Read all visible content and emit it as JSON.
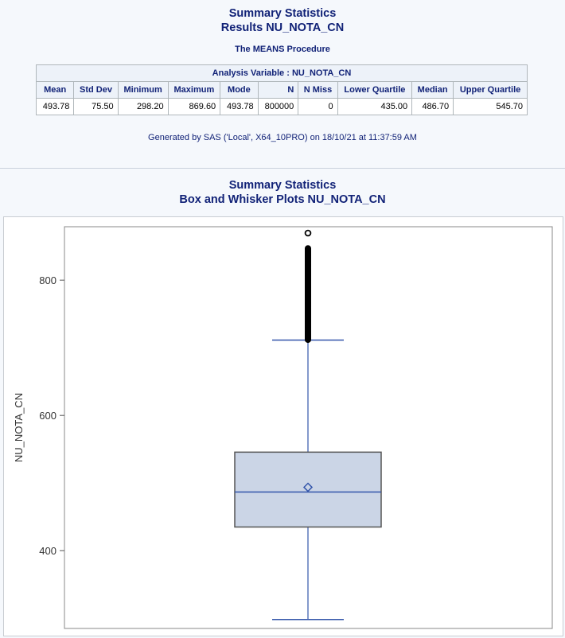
{
  "header": {
    "title": "Summary Statistics",
    "subtitle": "Results NU_NOTA_CN",
    "procedure": "The MEANS Procedure"
  },
  "table": {
    "caption": "Analysis Variable : NU_NOTA_CN",
    "columns": [
      "Mean",
      "Std Dev",
      "Minimum",
      "Maximum",
      "Mode",
      "N",
      "N Miss",
      "Lower Quartile",
      "Median",
      "Upper Quartile"
    ],
    "row": [
      "493.78",
      "75.50",
      "298.20",
      "869.60",
      "493.78",
      "800000",
      "0",
      "435.00",
      "486.70",
      "545.70"
    ]
  },
  "footer": {
    "generated": "Generated by SAS ('Local', X64_10PRO) on 18/10/21 at 11:37:59 AM"
  },
  "plot_header": {
    "title": "Summary Statistics",
    "subtitle": "Box and Whisker Plots NU_NOTA_CN"
  },
  "chart_data": {
    "type": "box",
    "ylabel": "NU_NOTA_CN",
    "ylim": [
      285,
      879
    ],
    "yticks": [
      400,
      600,
      800
    ],
    "box": {
      "whisker_low": 298.2,
      "q1": 435.0,
      "median": 486.7,
      "mean": 493.78,
      "q3": 545.7,
      "whisker_high": 711.4,
      "max": 869.6
    },
    "outliers": [
      712,
      716,
      722,
      730,
      740,
      752,
      765,
      778,
      790,
      800,
      808,
      815,
      822,
      828,
      833,
      838,
      842,
      847,
      869.6
    ],
    "colors": {
      "box_fill": "#cbd5e6",
      "box_stroke": "#555555",
      "whisker": "#3355aa",
      "outlier": "#000000"
    }
  }
}
